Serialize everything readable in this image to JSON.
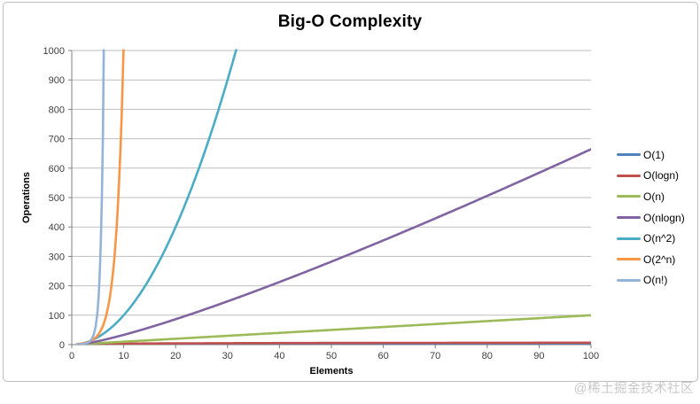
{
  "watermark": "@稀土掘金技术社区",
  "chart_data": {
    "type": "line",
    "title": "Big-O Complexity",
    "xlabel": "Elements",
    "ylabel": "Operations",
    "xlim": [
      0,
      100
    ],
    "ylim": [
      0,
      1000
    ],
    "xticks": [
      0,
      10,
      20,
      30,
      40,
      50,
      60,
      70,
      80,
      90,
      100
    ],
    "yticks": [
      0,
      100,
      200,
      300,
      400,
      500,
      600,
      700,
      800,
      900,
      1000
    ],
    "grid": "horizontal-only",
    "legend_position": "right",
    "grid_color": "#bfbfbf",
    "axis_color": "#808080",
    "tick_label_color": "#3f3f3f",
    "clip_note": "series values above ylim are clipped at top of plot area",
    "sample_x": [
      1,
      2,
      5,
      10,
      20,
      50,
      100
    ],
    "series": [
      {
        "label": "O(1)",
        "formula": "1",
        "color": "#4F81BD",
        "values_at_sample_x": [
          1,
          1,
          1,
          1,
          1,
          1,
          1
        ]
      },
      {
        "label": "O(logn)",
        "formula": "log2(n)",
        "color": "#C0504D",
        "values_at_sample_x": [
          0,
          1,
          2.32,
          3.32,
          4.32,
          5.64,
          6.64
        ]
      },
      {
        "label": "O(n)",
        "formula": "n",
        "color": "#9BBB59",
        "values_at_sample_x": [
          1,
          2,
          5,
          10,
          20,
          50,
          100
        ]
      },
      {
        "label": "O(nlogn)",
        "formula": "n*log2(n)",
        "color": "#8064A2",
        "values_at_sample_x": [
          0,
          2,
          11.61,
          33.22,
          86.44,
          282.19,
          664.39
        ]
      },
      {
        "label": "O(n^2)",
        "formula": "n^2",
        "color": "#4BACC6",
        "values_at_sample_x": [
          1,
          4,
          25,
          100,
          400,
          2500,
          10000
        ]
      },
      {
        "label": "O(2^n)",
        "formula": "2^n",
        "color": "#F79646",
        "values_at_sample_x": [
          2,
          4,
          32,
          1024,
          1048576,
          1130000000000000.0,
          1.27e+30
        ]
      },
      {
        "label": "O(n!)",
        "formula": "n!",
        "color": "#95B3D7",
        "values_at_sample_x": [
          1,
          2,
          120,
          3628800,
          2.43e+18,
          3.04e+64,
          9.33e+157
        ]
      }
    ]
  }
}
